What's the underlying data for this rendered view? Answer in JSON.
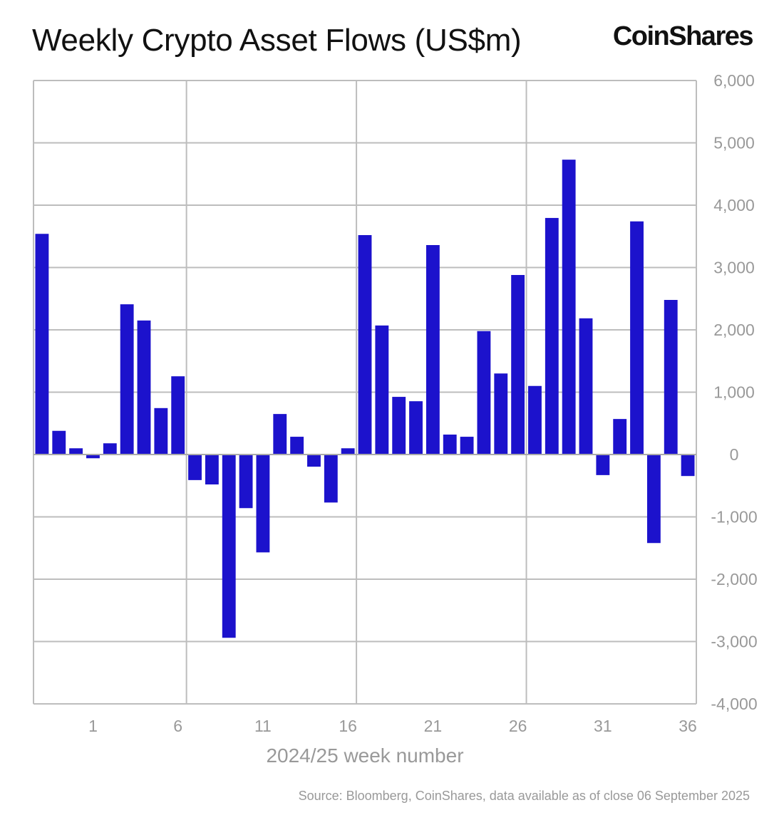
{
  "header": {
    "title": "Weekly Crypto Asset Flows (US$m)",
    "logo_text": "CoinShares"
  },
  "footer": {
    "source": "Source: Bloomberg, CoinShares, data available as of close 06 September 2025"
  },
  "chart_data": {
    "type": "bar",
    "title": "Weekly Crypto Asset Flows (US$m)",
    "xlabel": "2024/25 week number",
    "ylabel": "",
    "ylim": [
      -4000,
      6000
    ],
    "yticks": [
      6000,
      5000,
      4000,
      3000,
      2000,
      1000,
      0,
      -1000,
      -2000,
      -3000,
      -4000
    ],
    "ytick_labels": [
      "6,000",
      "5,000",
      "4,000",
      "3,000",
      "2,000",
      "1,000",
      "0",
      "-1,000",
      "-2,000",
      "-3,000",
      "-4,000"
    ],
    "y_axis_side": "right",
    "xtick_labels": [
      "1",
      "6",
      "11",
      "16",
      "21",
      "26",
      "31",
      "36"
    ],
    "xtick_week_numbers": [
      1,
      6,
      11,
      16,
      21,
      26,
      31,
      36
    ],
    "first_labelled_week_index": 3,
    "grid": true,
    "bar_color": "#1c12cc",
    "values": [
      3540,
      380,
      100,
      -60,
      180,
      2410,
      2150,
      745,
      1255,
      -410,
      -480,
      -2940,
      -860,
      -1570,
      650,
      285,
      -195,
      -770,
      100,
      3520,
      2070,
      925,
      855,
      3360,
      320,
      285,
      1980,
      1300,
      2880,
      1100,
      3795,
      4730,
      2185,
      -330,
      570,
      3740,
      -1420,
      2480,
      -345
    ]
  }
}
